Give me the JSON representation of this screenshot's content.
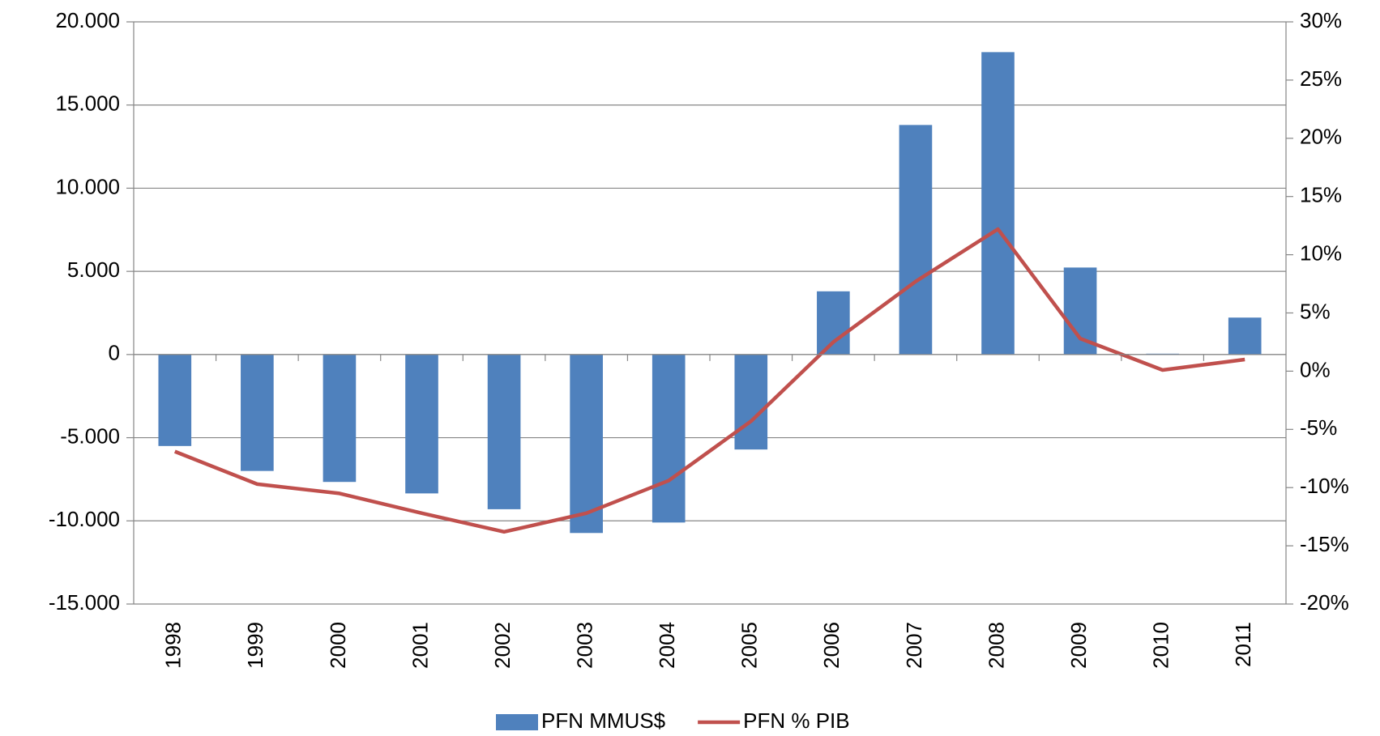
{
  "chart_data": {
    "type": "bar-line",
    "categories": [
      "1998",
      "1999",
      "2000",
      "2001",
      "2002",
      "2003",
      "2004",
      "2005",
      "2006",
      "2007",
      "2008",
      "2009",
      "2010",
      "2011"
    ],
    "series": [
      {
        "name": "PFN MMUS$",
        "type": "bar",
        "color": "#4f81bd",
        "values": [
          -5500,
          -7000,
          -7660,
          -8350,
          -9300,
          -10730,
          -10100,
          -5710,
          3800,
          13800,
          18180,
          5230,
          50,
          2220
        ]
      },
      {
        "name": "PFN % PIB",
        "type": "line",
        "axis": "y2",
        "color": "#c0504d",
        "values": [
          -6.9,
          -9.7,
          -10.5,
          -12.2,
          -13.8,
          -12.2,
          -9.4,
          -4.3,
          2.5,
          7.7,
          12.2,
          2.8,
          0.1,
          1.0
        ]
      }
    ],
    "ylim": [
      -15000,
      20000
    ],
    "yticks": [
      {
        "value": -15000,
        "label": "-15.000"
      },
      {
        "value": -10000,
        "label": "-10.000"
      },
      {
        "value": -5000,
        "label": "-5.000"
      },
      0,
      {
        "value": 5000,
        "label": "5.000"
      },
      {
        "value": 10000,
        "label": "10.000"
      },
      {
        "value": 15000,
        "label": "15.000"
      },
      {
        "value": 20000,
        "label": "20.000"
      }
    ],
    "y2lim": [
      -20,
      30
    ],
    "y2ticks": [
      {
        "value": -20,
        "label": "-20%"
      },
      {
        "value": -15,
        "label": "-15%"
      },
      {
        "value": -10,
        "label": "-10%"
      },
      {
        "value": -5,
        "label": "-5%"
      },
      {
        "value": 0,
        "label": "0%"
      },
      {
        "value": 5,
        "label": "5%"
      },
      {
        "value": 10,
        "label": "10%"
      },
      {
        "value": 15,
        "label": "15%"
      },
      {
        "value": 20,
        "label": "20%"
      },
      {
        "value": 25,
        "label": "25%"
      },
      {
        "value": 30,
        "label": "30%"
      }
    ],
    "grid": true,
    "legend": "bottom"
  }
}
